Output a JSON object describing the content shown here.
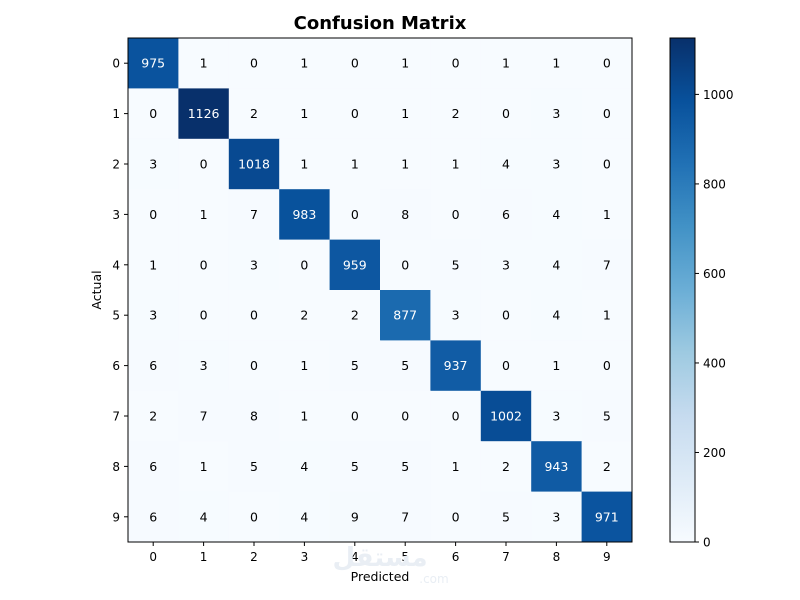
{
  "chart_data": {
    "type": "heatmap",
    "title": "Confusion Matrix",
    "xlabel": "Predicted",
    "ylabel": "Actual",
    "x_categories": [
      "0",
      "1",
      "2",
      "3",
      "4",
      "5",
      "6",
      "7",
      "8",
      "9"
    ],
    "y_categories": [
      "0",
      "1",
      "2",
      "3",
      "4",
      "5",
      "6",
      "7",
      "8",
      "9"
    ],
    "values": [
      [
        975,
        1,
        0,
        1,
        0,
        1,
        0,
        1,
        1,
        0
      ],
      [
        0,
        1126,
        2,
        1,
        0,
        1,
        2,
        0,
        3,
        0
      ],
      [
        3,
        0,
        1018,
        1,
        1,
        1,
        1,
        4,
        3,
        0
      ],
      [
        0,
        1,
        7,
        983,
        0,
        8,
        0,
        6,
        4,
        1
      ],
      [
        1,
        0,
        3,
        0,
        959,
        0,
        5,
        3,
        4,
        7
      ],
      [
        3,
        0,
        0,
        2,
        2,
        877,
        3,
        0,
        4,
        1
      ],
      [
        6,
        3,
        0,
        1,
        5,
        5,
        937,
        0,
        1,
        0
      ],
      [
        2,
        7,
        8,
        1,
        0,
        0,
        0,
        1002,
        3,
        5
      ],
      [
        6,
        1,
        5,
        4,
        5,
        5,
        1,
        2,
        943,
        2
      ],
      [
        6,
        4,
        0,
        4,
        9,
        7,
        0,
        5,
        3,
        971
      ]
    ],
    "colorbar": {
      "min": 0,
      "max": 1126,
      "ticks": [
        0,
        200,
        400,
        600,
        800,
        1000
      ],
      "colormap": "Blues"
    },
    "grid": false
  },
  "watermark": {
    "main": "مستقل",
    "sub": ".com"
  }
}
